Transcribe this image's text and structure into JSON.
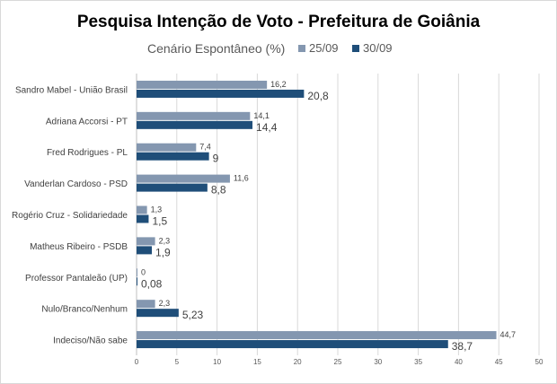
{
  "chart_data": {
    "type": "bar",
    "orientation": "horizontal",
    "title": "Pesquisa Intenção de Voto - Prefeitura de Goiânia",
    "subtitle": "Cenário Espontâneo (%)",
    "categories": [
      "Sandro Mabel - União Brasil",
      "Adriana Accorsi - PT",
      "Fred Rodrigues - PL",
      "Vanderlan Cardoso - PSD",
      "Rogério Cruz - Solidariedade",
      "Matheus Ribeiro - PSDB",
      "Professor Pantaleão (UP)",
      "Nulo/Branco/Nenhum",
      "Indeciso/Não sabe"
    ],
    "series": [
      {
        "name": "25/09",
        "color": "#8497b0",
        "values": [
          16.2,
          14.1,
          7.4,
          11.6,
          1.3,
          2.3,
          0,
          2.3,
          44.7
        ],
        "labels": [
          "16,2",
          "14,1",
          "7,4",
          "11,6",
          "1,3",
          "2,3",
          "0",
          "2,3",
          "44,7"
        ]
      },
      {
        "name": "30/09",
        "color": "#1f4e79",
        "values": [
          20.8,
          14.4,
          9,
          8.8,
          1.5,
          1.9,
          0.08,
          5.23,
          38.7
        ],
        "labels": [
          "20,8",
          "14,4",
          "9",
          "8,8",
          "1,5",
          "1,9",
          "0,08",
          "5,23",
          "38,7"
        ]
      }
    ],
    "xlim": [
      0,
      50
    ],
    "xticks": [
      "0",
      "5",
      "10",
      "15",
      "20",
      "25",
      "30",
      "35",
      "40",
      "45",
      "50"
    ],
    "grid": true,
    "legend_position": "top"
  }
}
